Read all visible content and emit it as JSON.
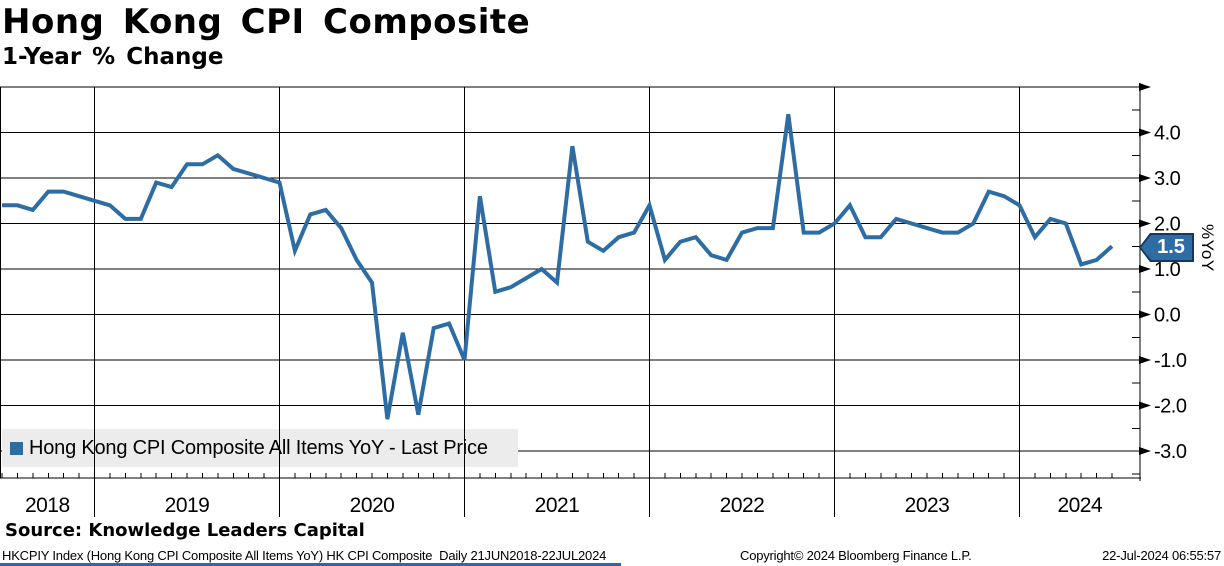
{
  "header": {
    "title": "Hong Kong CPI Composite",
    "subtitle": "1-Year % Change"
  },
  "legend": {
    "label": "Hong Kong CPI Composite All Items YoY - Last Price"
  },
  "last_price_badge": {
    "value": "1.5"
  },
  "y_axis_title": "%YoY",
  "footer": {
    "source": "Source: Knowledge Leaders Capital",
    "detail": "HKCPIY Index (Hong Kong CPI Composite All Items YoY) HK CPI Composite  Daily 21JUN2018-22JUL2024",
    "copyright": "Copyright© 2024 Bloomberg Finance L.P.",
    "timestamp": "22-Jul-2024 06:55:57"
  },
  "colors": {
    "line": "#2e6da4",
    "badge_fill": "#2e6da4",
    "badge_border": "#17375d",
    "legend_bg": "#ececec",
    "grid": "#000000",
    "bottom_strip": "#3465a8"
  },
  "chart_data": {
    "type": "line",
    "title": "Hong Kong CPI Composite",
    "subtitle": "1-Year % Change",
    "ylabel": "%YoY",
    "ylim": [
      -3.6,
      5.0
    ],
    "y_ticks_labeled": [
      4.0,
      3.0,
      2.0,
      1.0,
      0.0,
      -1.0,
      -2.0,
      -3.0
    ],
    "y_minor_tick_step": 0.5,
    "grid": "on",
    "legend_position": "bottom-left",
    "x_year_labels": [
      "2018",
      "2019",
      "2020",
      "2021",
      "2022",
      "2023",
      "2024"
    ],
    "x_range": "21JUN2018-22JUL2024",
    "last_price": 1.5,
    "series": [
      {
        "name": "Hong Kong CPI Composite All Items YoY - Last Price",
        "frequency": "monthly",
        "start_month": "2018-06",
        "end_month": "2024-06",
        "values": [
          2.4,
          2.4,
          2.3,
          2.7,
          2.7,
          2.6,
          2.5,
          2.4,
          2.1,
          2.1,
          2.9,
          2.8,
          3.3,
          3.3,
          3.5,
          3.2,
          3.1,
          3.0,
          2.9,
          1.4,
          2.2,
          2.3,
          1.9,
          1.2,
          0.7,
          -2.3,
          -0.4,
          -2.2,
          -0.3,
          -0.2,
          -1.0,
          2.6,
          0.5,
          0.6,
          0.8,
          1.0,
          0.7,
          3.7,
          1.6,
          1.4,
          1.7,
          1.8,
          2.4,
          1.2,
          1.6,
          1.7,
          1.3,
          1.2,
          1.8,
          1.9,
          1.9,
          4.4,
          1.8,
          1.8,
          2.0,
          2.4,
          1.7,
          1.7,
          2.1,
          2.0,
          1.9,
          1.8,
          1.8,
          2.0,
          2.7,
          2.6,
          2.4,
          1.7,
          2.1,
          2.0,
          1.1,
          1.2,
          1.5
        ]
      }
    ]
  }
}
